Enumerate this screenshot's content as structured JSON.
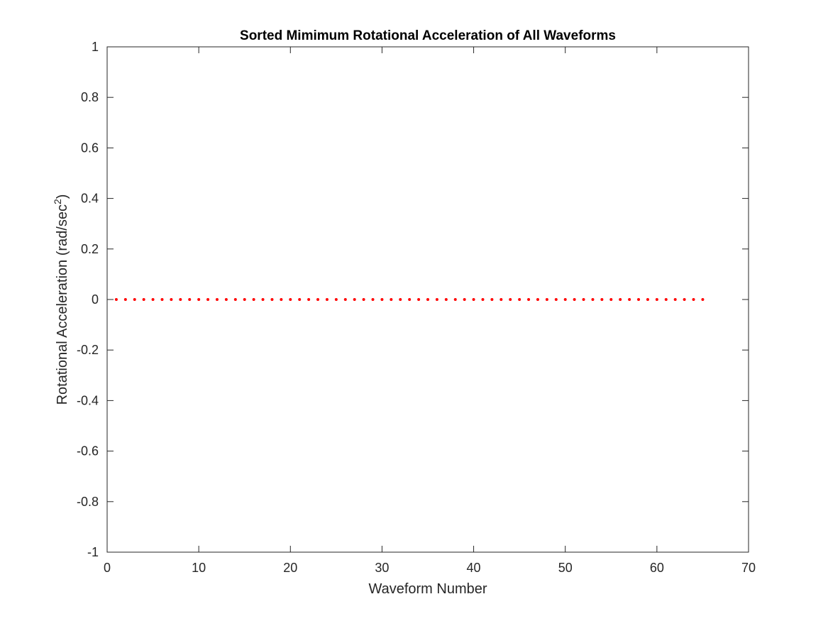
{
  "chart_data": {
    "type": "scatter",
    "title": "Sorted Mimimum Rotational Acceleration of All Waveforms",
    "xlabel": "Waveform Number",
    "ylabel": "Rotational Acceleration (rad/sec",
    "ylabel_superscript": "2",
    "ylabel_suffix": ")",
    "xlim": [
      0,
      70
    ],
    "ylim": [
      -1,
      1
    ],
    "xticks": [
      0,
      10,
      20,
      30,
      40,
      50,
      60,
      70
    ],
    "yticks": [
      -1,
      -0.8,
      -0.6,
      -0.4,
      -0.2,
      0,
      0.2,
      0.4,
      0.6,
      0.8,
      1
    ],
    "grid": false,
    "legend": "none",
    "series": [
      {
        "color": "#ff0000",
        "marker": "dot",
        "x": [
          1,
          2,
          3,
          4,
          5,
          6,
          7,
          8,
          9,
          10,
          11,
          12,
          13,
          14,
          15,
          16,
          17,
          18,
          19,
          20,
          21,
          22,
          23,
          24,
          25,
          26,
          27,
          28,
          29,
          30,
          31,
          32,
          33,
          34,
          35,
          36,
          37,
          38,
          39,
          40,
          41,
          42,
          43,
          44,
          45,
          46,
          47,
          48,
          49,
          50,
          51,
          52,
          53,
          54,
          55,
          56,
          57,
          58,
          59,
          60,
          61,
          62,
          63,
          64,
          65
        ],
        "y": [
          0,
          0,
          0,
          0,
          0,
          0,
          0,
          0,
          0,
          0,
          0,
          0,
          0,
          0,
          0,
          0,
          0,
          0,
          0,
          0,
          0,
          0,
          0,
          0,
          0,
          0,
          0,
          0,
          0,
          0,
          0,
          0,
          0,
          0,
          0,
          0,
          0,
          0,
          0,
          0,
          0,
          0,
          0,
          0,
          0,
          0,
          0,
          0,
          0,
          0,
          0,
          0,
          0,
          0,
          0,
          0,
          0,
          0,
          0,
          0,
          0,
          0,
          0,
          0,
          0
        ]
      }
    ]
  }
}
